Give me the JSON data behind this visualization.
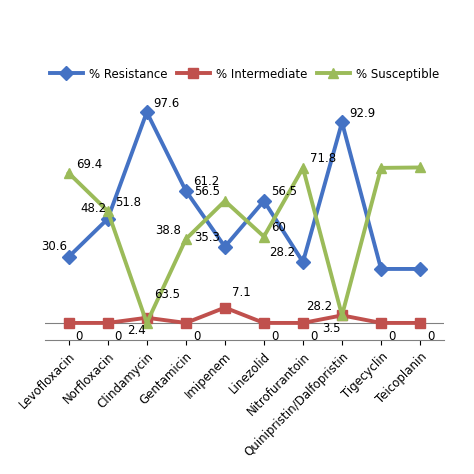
{
  "categories": [
    "Levofloxacin",
    "Norfloxacin",
    "Clindamycin",
    "Gentamicin",
    "Imipenem",
    "Linezolid",
    "Nitrofurantoin",
    "Quinipristin/Dalfopristin",
    "Tigecyclin",
    "Teicoplanin"
  ],
  "resistance": [
    30.6,
    48.2,
    97.6,
    61.2,
    35.3,
    56.5,
    28.2,
    92.9,
    25,
    25
  ],
  "intermediate": [
    0,
    0,
    2.4,
    0,
    7.1,
    0,
    0,
    3.5,
    0,
    0
  ],
  "susceptible": [
    69.4,
    51.8,
    0,
    38.8,
    56.5,
    40,
    71.8,
    3.5,
    71.8,
    72
  ],
  "resistance_color": "#4472C4",
  "intermediate_color": "#C0504D",
  "susceptible_color": "#9BBB59",
  "resistance_label": "% Resistance",
  "intermediate_label": "% Intermediate",
  "susceptible_label": "% Susceptible",
  "ylim": [
    -8,
    108
  ],
  "background_color": "#FFFFFF",
  "line_width": 2.8,
  "marker_size": 7
}
